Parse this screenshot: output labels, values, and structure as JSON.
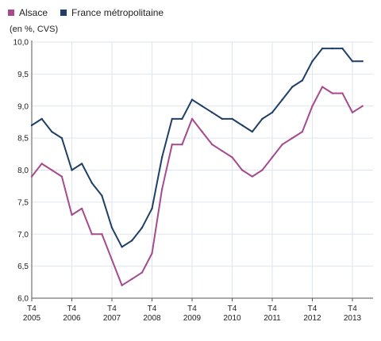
{
  "colors": {
    "alsace": "#a64a8e",
    "france": "#1f3f66",
    "grid": "#dde6ef",
    "axis": "#555555"
  },
  "chart_data": {
    "type": "line",
    "unit_label": "(en %, CVS)",
    "ylim": [
      6.0,
      10.0
    ],
    "y_ticks": [
      "6,0",
      "6,5",
      "7,0",
      "7,5",
      "8,0",
      "8,5",
      "9,0",
      "9,5",
      "10,0"
    ],
    "x_ticks": [
      {
        "q": "T4",
        "year": "2005"
      },
      {
        "q": "T4",
        "year": "2006"
      },
      {
        "q": "T4",
        "year": "2007"
      },
      {
        "q": "T4",
        "year": "2008"
      },
      {
        "q": "T4",
        "year": "2009"
      },
      {
        "q": "T4",
        "year": "2010"
      },
      {
        "q": "T4",
        "year": "2011"
      },
      {
        "q": "T4",
        "year": "2012"
      },
      {
        "q": "T4",
        "year": "2013"
      }
    ],
    "x": [
      "2005 T4",
      "2006 T1",
      "2006 T2",
      "2006 T3",
      "2006 T4",
      "2007 T1",
      "2007 T2",
      "2007 T3",
      "2007 T4",
      "2008 T1",
      "2008 T2",
      "2008 T3",
      "2008 T4",
      "2009 T1",
      "2009 T2",
      "2009 T3",
      "2009 T4",
      "2010 T1",
      "2010 T2",
      "2010 T3",
      "2010 T4",
      "2011 T1",
      "2011 T2",
      "2011 T3",
      "2011 T4",
      "2012 T1",
      "2012 T2",
      "2012 T3",
      "2012 T4",
      "2013 T1",
      "2013 T2",
      "2013 T3",
      "2013 T4",
      "2014 T1"
    ],
    "series": [
      {
        "name": "Alsace",
        "color_key": "alsace",
        "values": [
          7.9,
          8.1,
          8.0,
          7.9,
          7.3,
          7.4,
          7.0,
          7.0,
          6.6,
          6.2,
          6.3,
          6.4,
          6.7,
          7.7,
          8.4,
          8.4,
          8.8,
          8.6,
          8.4,
          8.3,
          8.2,
          8.0,
          7.9,
          8.0,
          8.2,
          8.4,
          8.5,
          8.6,
          9.0,
          9.3,
          9.2,
          9.2,
          8.9,
          9.0
        ]
      },
      {
        "name": "France métropolitaine",
        "color_key": "france",
        "values": [
          8.7,
          8.8,
          8.6,
          8.5,
          8.0,
          8.1,
          7.8,
          7.6,
          7.1,
          6.8,
          6.9,
          7.1,
          7.4,
          8.2,
          8.8,
          8.8,
          9.1,
          9.0,
          8.9,
          8.8,
          8.8,
          8.7,
          8.6,
          8.8,
          8.9,
          9.1,
          9.3,
          9.4,
          9.7,
          9.9,
          9.9,
          9.9,
          9.7,
          9.7
        ]
      }
    ],
    "legend": "top-left",
    "grid": true
  }
}
